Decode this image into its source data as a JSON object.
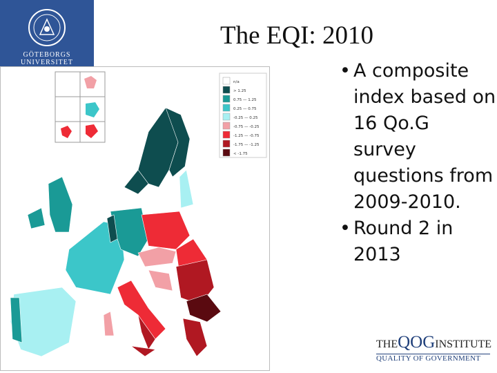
{
  "logo": {
    "line1": "GÖTEBORGS",
    "line2": "UNIVERSITET"
  },
  "title": "The EQI: 2010",
  "bullets": [
    "A composite index based on 16 Qo.G survey questions from 2009-2010.",
    "Round 2 in 2013"
  ],
  "map": {
    "legend": [
      {
        "label": "n/a",
        "color": "#ffffff"
      },
      {
        "label": "> 1.25",
        "color": "#0e4d4f"
      },
      {
        "label": "0.75 — 1.25",
        "color": "#1a9a96"
      },
      {
        "label": "0.25 — 0.75",
        "color": "#3cc6c9"
      },
      {
        "label": "-0.25 — 0.25",
        "color": "#a8f0f2"
      },
      {
        "label": "-0.75 — -0.25",
        "color": "#f2a0a6"
      },
      {
        "label": "-1.25 — -0.75",
        "color": "#ee2b36"
      },
      {
        "label": "-1.75 — -1.25",
        "color": "#b01822"
      },
      {
        "label": "< -1.75",
        "color": "#5a0a10"
      }
    ]
  },
  "institute": {
    "name_prefix": "THE",
    "name_main": "QOG",
    "name_suffix": "INSTITUTE",
    "tagline": "QUALITY OF GOVERNMENT"
  }
}
